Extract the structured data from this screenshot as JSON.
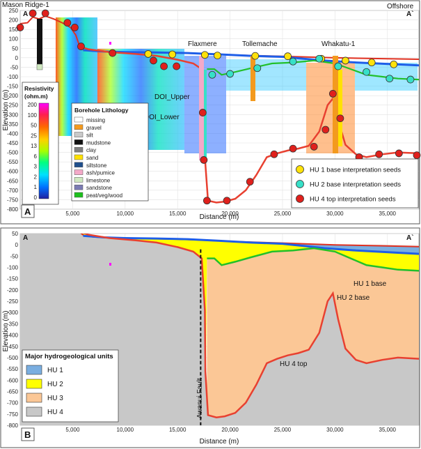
{
  "panel_a": {
    "label": "A",
    "corner_left": "A",
    "corner_right": "A`",
    "well_top_left": "Mason Ridge-1",
    "well_top_right": "Offshore",
    "well_labels": [
      "Flaxmere",
      "Tollemache",
      "Whakatu-1"
    ],
    "doi_upper": "DOI_Upper",
    "doi_lower": "DOI_Lower",
    "ylabel": "Elevation (m)",
    "xlabel": "Distance (m)",
    "resistivity_title_1": "Resistivity",
    "resistivity_title_2": "(ohm.m)",
    "resistivity_ticks": [
      "200",
      "100",
      "50",
      "25",
      "13",
      "6",
      "3",
      "2",
      "1",
      "0"
    ],
    "lithology_title": "Borehole Lithology",
    "lithology_items": [
      {
        "label": "missing",
        "color": "#ffffff"
      },
      {
        "label": "gravel",
        "color": "#f39a1e"
      },
      {
        "label": "silt",
        "color": "#c9c9c9"
      },
      {
        "label": "mudstone",
        "color": "#111111"
      },
      {
        "label": "clay",
        "color": "#7f7f7f"
      },
      {
        "label": "sand",
        "color": "#ffe100"
      },
      {
        "label": "siltstone",
        "color": "#1f4f8c"
      },
      {
        "label": "ash/pumice",
        "color": "#f4a9c8"
      },
      {
        "label": "limestone",
        "color": "#cfe8c0"
      },
      {
        "label": "sandstone",
        "color": "#7b7bb3"
      },
      {
        "label": "peat/veg/wood",
        "color": "#1dbf1d"
      }
    ],
    "seed_legend": [
      {
        "label": "HU 1 base interpretation seeds",
        "color": "#ffe20a"
      },
      {
        "label": "HU 2 base interpretation seeds",
        "color": "#37e0c8"
      },
      {
        "label": "HU 4 top interpretation seeds",
        "color": "#e0201c"
      }
    ]
  },
  "panel_b": {
    "label": "B",
    "corner_left": "A",
    "corner_right": "A`",
    "ylabel": "Elevation (m)",
    "xlabel": "Distance (m)",
    "fault_label": "Awanui Fault",
    "hu1_base": "HU 1 base",
    "hu2_base": "HU 2 base",
    "hu4_top": "HU 4 top",
    "legend_title": "Major hydrogeological units",
    "legend_items": [
      {
        "label": "HU 1",
        "color": "#7aaee0"
      },
      {
        "label": "HU 2",
        "color": "#ffff00"
      },
      {
        "label": "HU 3",
        "color": "#fbc796"
      },
      {
        "label": "HU 4",
        "color": "#c8c8c8"
      }
    ]
  },
  "axes": {
    "y_ticks": [
      250,
      200,
      150,
      100,
      50,
      0,
      -50,
      -100,
      -150,
      -200,
      -250,
      -300,
      -350,
      -400,
      -450,
      -500,
      -550,
      -600,
      -650,
      -700,
      -750,
      -800
    ],
    "x_ticks": [
      {
        "value": 5000,
        "label": "5,000"
      },
      {
        "value": 10000,
        "label": "10,000"
      },
      {
        "value": 15000,
        "label": "15,000"
      },
      {
        "value": 20000,
        "label": "20,000"
      },
      {
        "value": 25000,
        "label": "25,000"
      },
      {
        "value": 30000,
        "label": "30,000"
      },
      {
        "value": 35000,
        "label": "35,000"
      }
    ],
    "x_range": [
      0,
      38000
    ]
  },
  "surfaces": {
    "ground": [
      [
        0,
        180
      ],
      [
        700,
        185
      ],
      [
        1200,
        215
      ],
      [
        1800,
        205
      ],
      [
        2400,
        220
      ],
      [
        3200,
        205
      ],
      [
        4000,
        185
      ],
      [
        4800,
        160
      ],
      [
        5300,
        120
      ],
      [
        5700,
        55
      ],
      [
        6100,
        40
      ],
      [
        7000,
        35
      ],
      [
        9000,
        30
      ],
      [
        12000,
        28
      ],
      [
        15000,
        25
      ],
      [
        17000,
        22
      ],
      [
        20000,
        15
      ],
      [
        25000,
        8
      ],
      [
        30000,
        0
      ],
      [
        35000,
        -5
      ],
      [
        38000,
        -8
      ]
    ],
    "hu1_base": [
      [
        6000,
        40
      ],
      [
        8000,
        33
      ],
      [
        10000,
        30
      ],
      [
        13000,
        28
      ],
      [
        16000,
        25
      ],
      [
        19000,
        18
      ],
      [
        22000,
        10
      ],
      [
        25000,
        5
      ],
      [
        27000,
        -5
      ],
      [
        29000,
        -15
      ],
      [
        30500,
        -20
      ],
      [
        32000,
        -25
      ],
      [
        34000,
        -30
      ],
      [
        36000,
        -35
      ],
      [
        38000,
        -40
      ]
    ],
    "hu2_base": [
      [
        17800,
        -60
      ],
      [
        18500,
        -60
      ],
      [
        19200,
        -90
      ],
      [
        20500,
        -75
      ],
      [
        22000,
        -55
      ],
      [
        24000,
        -30
      ],
      [
        26000,
        -25
      ],
      [
        28000,
        -15
      ],
      [
        30000,
        -30
      ],
      [
        31500,
        -60
      ],
      [
        33000,
        -90
      ],
      [
        34500,
        -100
      ],
      [
        36000,
        -110
      ],
      [
        38000,
        -115
      ]
    ],
    "hu4_top": [
      [
        5600,
        60
      ],
      [
        6500,
        45
      ],
      [
        8500,
        30
      ],
      [
        11000,
        20
      ],
      [
        13000,
        10
      ],
      [
        15000,
        -10
      ],
      [
        16500,
        -30
      ],
      [
        17300,
        -60
      ],
      [
        17600,
        -290
      ],
      [
        17650,
        -560
      ],
      [
        17900,
        -755
      ],
      [
        18700,
        -765
      ],
      [
        19500,
        -760
      ],
      [
        20500,
        -745
      ],
      [
        21500,
        -700
      ],
      [
        22500,
        -620
      ],
      [
        23500,
        -525
      ],
      [
        24500,
        -505
      ],
      [
        25500,
        -490
      ],
      [
        26500,
        -480
      ],
      [
        27500,
        -465
      ],
      [
        28500,
        -390
      ],
      [
        29300,
        -250
      ],
      [
        29800,
        -215
      ],
      [
        30300,
        -330
      ],
      [
        31000,
        -460
      ],
      [
        32000,
        -510
      ],
      [
        33000,
        -525
      ],
      [
        34500,
        -510
      ],
      [
        36000,
        -500
      ],
      [
        38000,
        -505
      ]
    ]
  },
  "seeds": {
    "hu1": [
      [
        12200,
        20
      ],
      [
        14500,
        18
      ],
      [
        17600,
        15
      ],
      [
        18800,
        12
      ],
      [
        22400,
        10
      ],
      [
        25500,
        8
      ],
      [
        28700,
        -5
      ],
      [
        31000,
        -15
      ],
      [
        33500,
        -25
      ],
      [
        35600,
        -35
      ]
    ],
    "hu2": [
      [
        18300,
        -90
      ],
      [
        20000,
        -85
      ],
      [
        22600,
        -55
      ],
      [
        26000,
        -20
      ],
      [
        28500,
        -5
      ],
      [
        30300,
        -45
      ],
      [
        33000,
        -75
      ],
      [
        35200,
        -110
      ],
      [
        37200,
        -115
      ]
    ],
    "hu4": [
      [
        0,
        160
      ],
      [
        1200,
        235
      ],
      [
        2400,
        235
      ],
      [
        4500,
        185
      ],
      [
        5200,
        160
      ],
      [
        5800,
        60
      ],
      [
        8800,
        25
      ],
      [
        12700,
        -15
      ],
      [
        13700,
        -45
      ],
      [
        14900,
        -45
      ],
      [
        17400,
        -290
      ],
      [
        17500,
        -540
      ],
      [
        17800,
        -755
      ],
      [
        19700,
        -755
      ],
      [
        21900,
        -655
      ],
      [
        24200,
        -510
      ],
      [
        26000,
        -480
      ],
      [
        28000,
        -470
      ],
      [
        29100,
        -380
      ],
      [
        29800,
        -190
      ],
      [
        30500,
        -320
      ],
      [
        32300,
        -525
      ],
      [
        34200,
        -510
      ],
      [
        36100,
        -505
      ],
      [
        37800,
        -515
      ]
    ]
  },
  "fault": {
    "x": 17200,
    "y_top": -20,
    "y_bottom": -800
  }
}
